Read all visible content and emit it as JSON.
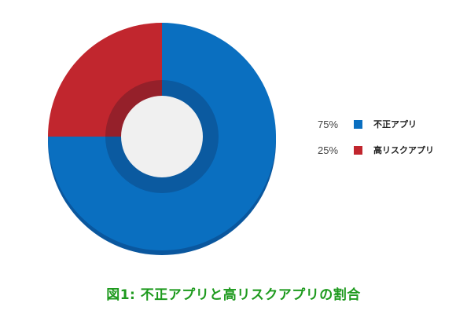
{
  "chart_data": {
    "type": "pie",
    "donut": true,
    "slices": [
      {
        "label": "不正アプリ",
        "value": 75,
        "value_label": "75%",
        "color": "#0a6fc0",
        "dark_color": "#0a579e",
        "inner_color": "#0b5aa0"
      },
      {
        "label": "高リスクアプリ",
        "value": 25,
        "value_label": "25%",
        "color": "#c1262e",
        "dark_color": "#8f1a20",
        "inner_color": "#95202a"
      }
    ],
    "legend_position": "right",
    "caption": "図1: 不正アプリと高リスクアプリの割合"
  }
}
